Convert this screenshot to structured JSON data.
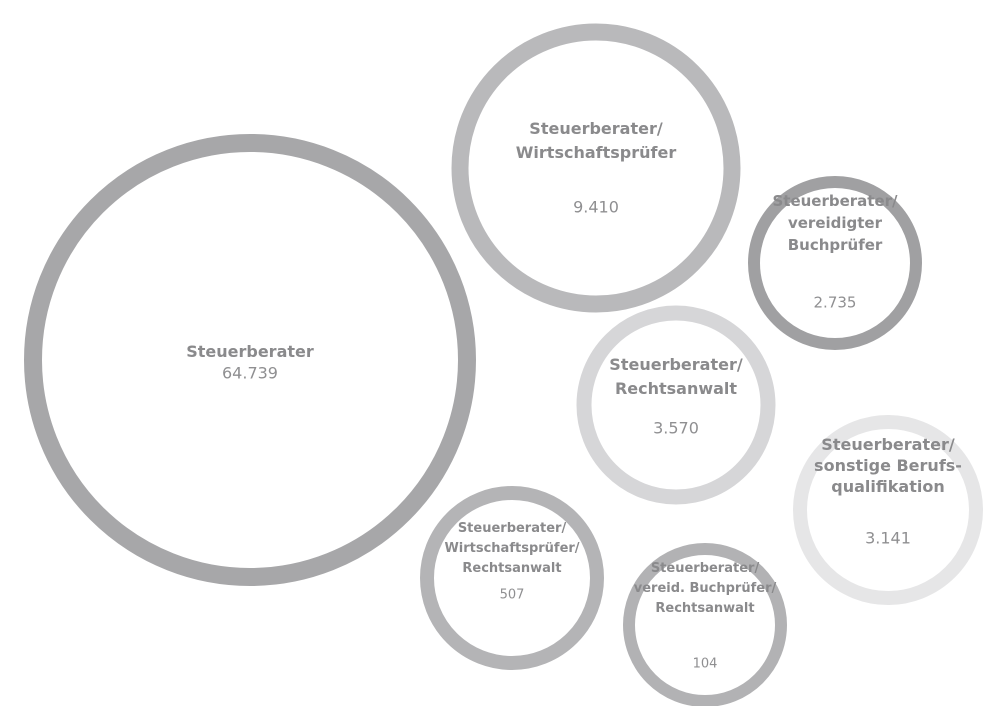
{
  "chart_data": {
    "type": "bubble",
    "categories": [
      "Steuerberater",
      "Steuerberater/\nWirtschaftsprüfer",
      "Steuerberater/\nvereidigter\nBuchprüfer",
      "Steuerberater/\nRechtsanwalt",
      "Steuerberater/\nsonstige Berufs-\nqualifikation",
      "Steuerberater/\nWirtschaftsprüfer/\nRechtsanwalt",
      "Steuerberater/\nvereid. Buchprüfer/\nRechtsanwalt"
    ],
    "values": [
      64739,
      9410,
      2735,
      3570,
      3141,
      507,
      104
    ],
    "value_labels": [
      "64.739",
      "9.410",
      "2.735",
      "3.570",
      "3.141",
      "507",
      "104"
    ],
    "colors": [
      "#a7a7a9",
      "#b9b9bb",
      "#a0a0a2",
      "#d6d6d8",
      "#e6e6e7",
      "#b4b4b6",
      "#b2b2b4"
    ]
  }
}
